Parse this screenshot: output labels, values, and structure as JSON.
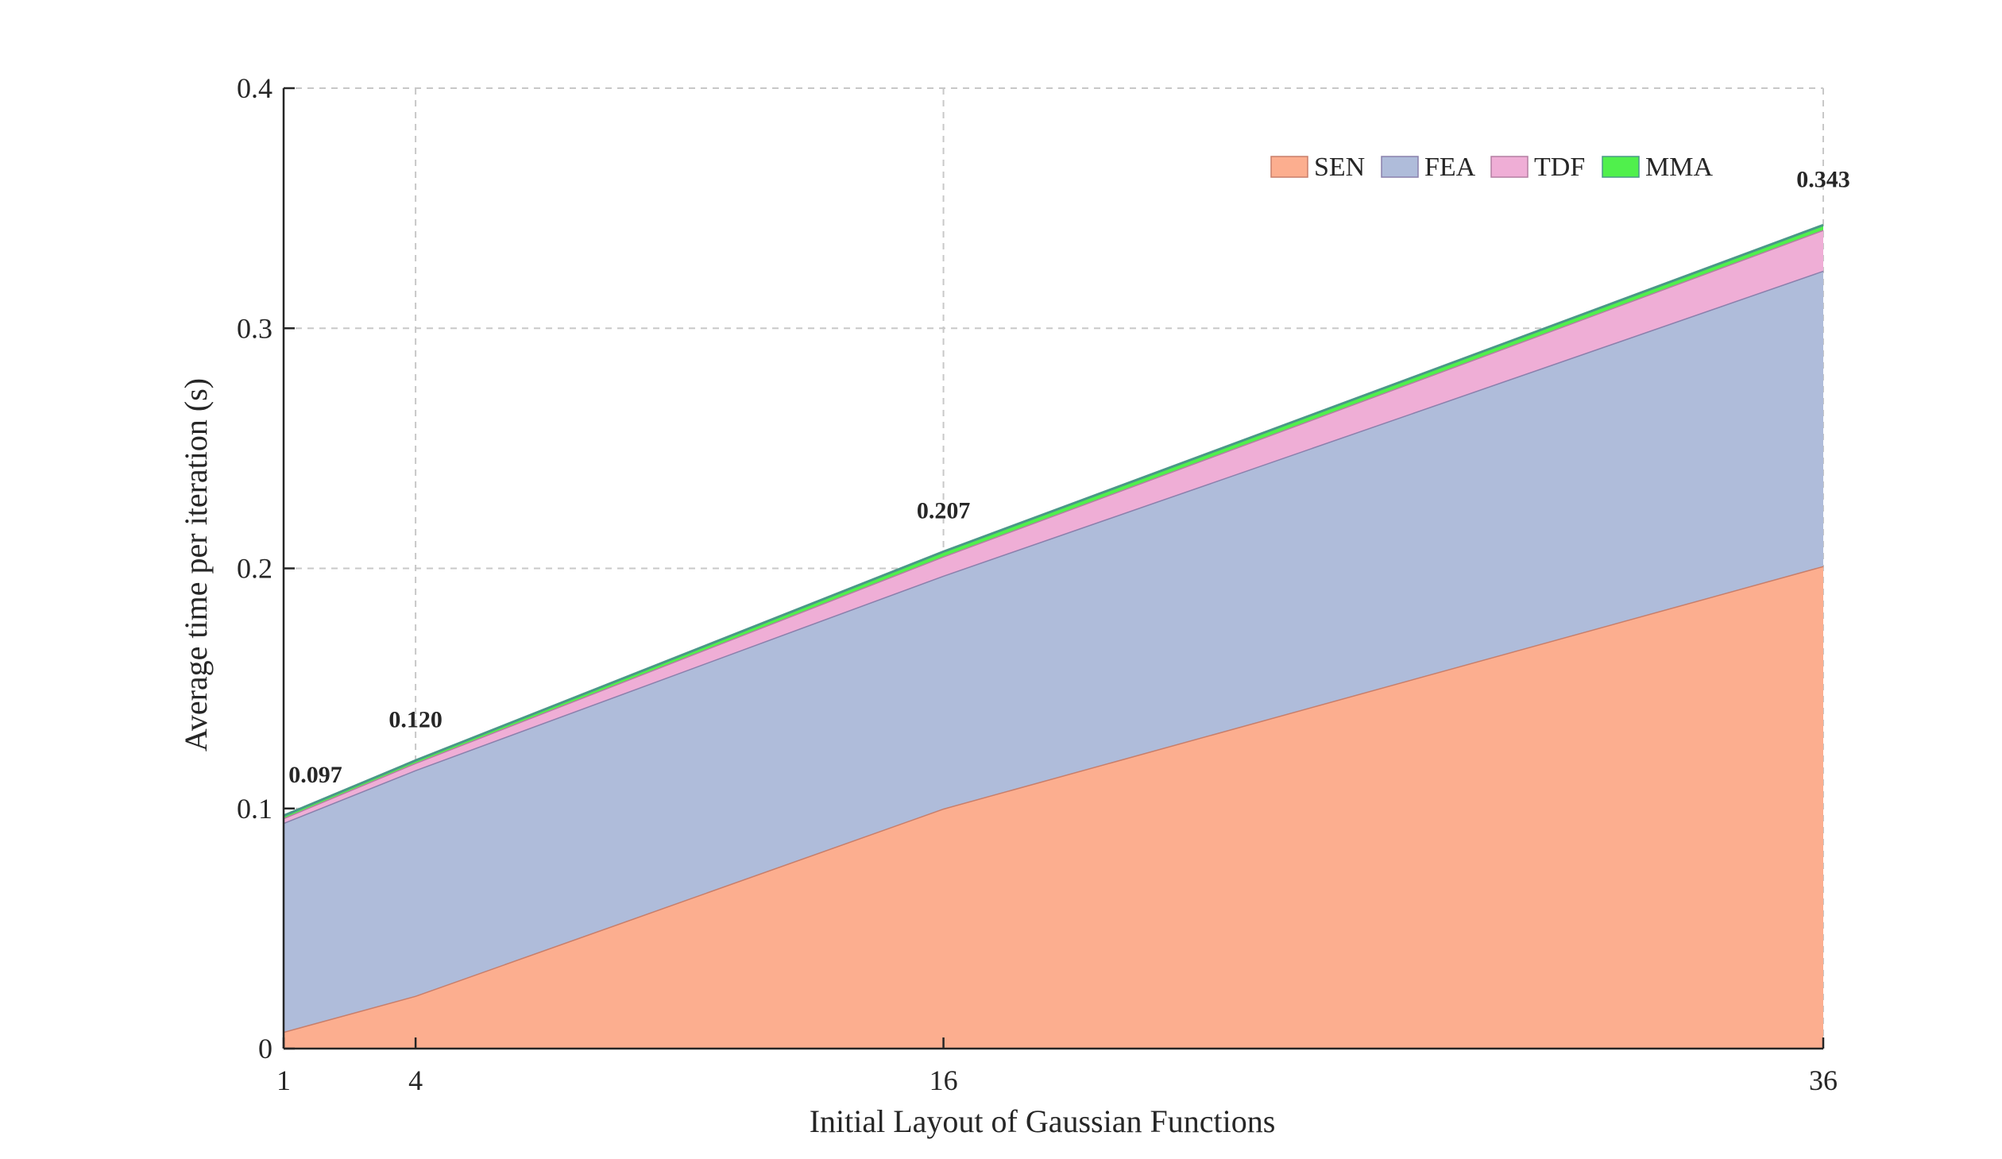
{
  "chart_data": {
    "type": "area",
    "stacked": true,
    "xlabel": "Initial Layout of Gaussian Functions",
    "ylabel": "Average time per iteration (s)",
    "x": [
      1,
      4,
      16,
      36
    ],
    "xticks": [
      "1",
      "4",
      "16",
      "36"
    ],
    "ylim": [
      0,
      0.4
    ],
    "yticks": [
      "0",
      "0.1",
      "0.2",
      "0.3",
      "0.4"
    ],
    "grid": true,
    "legend_position": "top-right",
    "series": [
      {
        "name": "SEN",
        "values": [
          0.007,
          0.022,
          0.1,
          0.201
        ],
        "color": "#fcae8f",
        "edge": "#c87e6a"
      },
      {
        "name": "FEA",
        "values": [
          0.087,
          0.094,
          0.097,
          0.123
        ],
        "color": "#afbcda",
        "edge": "#8a80ac"
      },
      {
        "name": "TDF",
        "values": [
          0.002,
          0.003,
          0.008,
          0.017
        ],
        "color": "#efaed6",
        "edge": "#b47fa2"
      },
      {
        "name": "MMA",
        "values": [
          0.001,
          0.001,
          0.002,
          0.002
        ],
        "color": "#50f04c",
        "edge": "#4a9888"
      }
    ],
    "totals": [
      "0.097",
      "0.120",
      "0.207",
      "0.343"
    ]
  }
}
